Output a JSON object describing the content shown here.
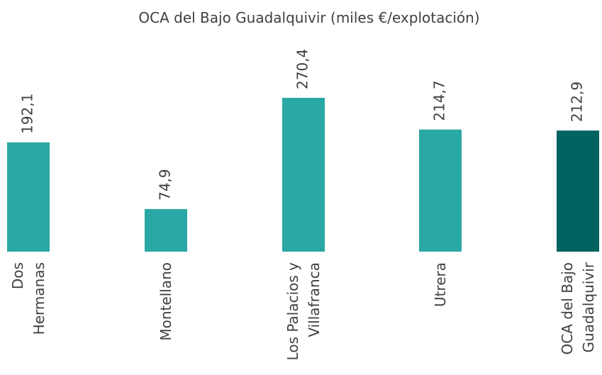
{
  "chart_data": {
    "type": "bar",
    "title": "OCA del Bajo Guadalquivir (miles €/explotación)",
    "categories": [
      "Dos\nHermanas",
      "Montellano",
      "Los Palacios y\nVillafranca",
      "Utrera",
      "OCA del Bajo\nGuadalquivir"
    ],
    "values": [
      192.1,
      74.9,
      270.4,
      214.7,
      212.9
    ],
    "value_labels": [
      "192,1",
      "74,9",
      "270,4",
      "214,7",
      "212,9"
    ],
    "colors": [
      "#2aa8a5",
      "#2aa8a5",
      "#2aa8a5",
      "#2aa8a5",
      "#00635f"
    ]
  }
}
